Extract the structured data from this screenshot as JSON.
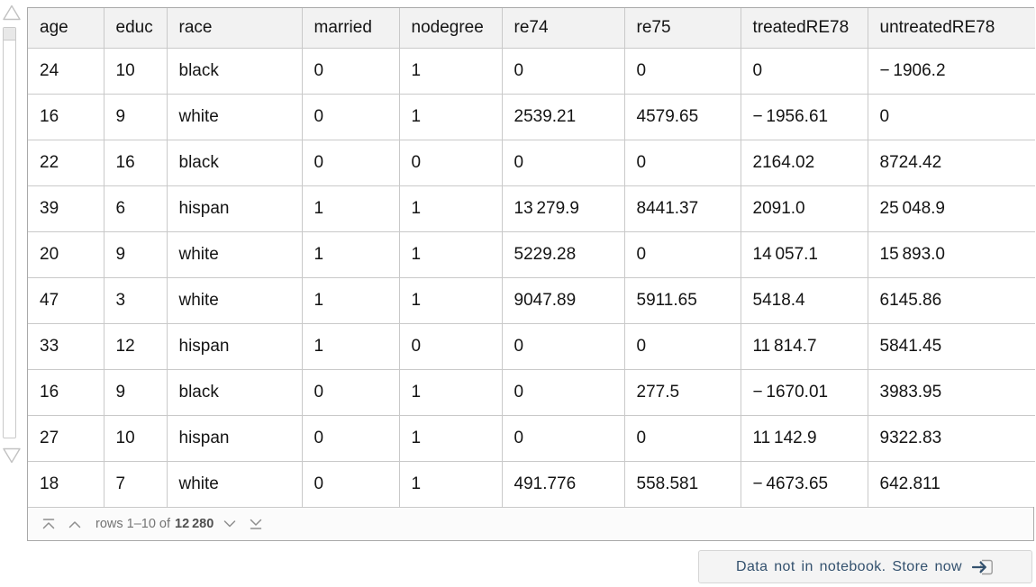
{
  "colors": {
    "accent": "#33516e",
    "header_bg": "#f2f2f2",
    "grid_border": "#c9c9c9"
  },
  "scroller": {
    "up_icon": "triangle-up",
    "down_icon": "triangle-down"
  },
  "table": {
    "columns": [
      "age",
      "educ",
      "race",
      "married",
      "nodegree",
      "re74",
      "re75",
      "treatedRE78",
      "untreatedRE78"
    ],
    "rows": [
      [
        "24",
        "10",
        "black",
        "0",
        "1",
        "0",
        "0",
        "0",
        "− 1906.2"
      ],
      [
        "16",
        "9",
        "white",
        "0",
        "1",
        "2539.21",
        "4579.65",
        "− 1956.61",
        "0"
      ],
      [
        "22",
        "16",
        "black",
        "0",
        "0",
        "0",
        "0",
        "2164.02",
        "8724.42"
      ],
      [
        "39",
        "6",
        "hispan",
        "1",
        "1",
        "13 279.9",
        "8441.37",
        "2091.0",
        "25 048.9"
      ],
      [
        "20",
        "9",
        "white",
        "1",
        "1",
        "5229.28",
        "0",
        "14 057.1",
        "15 893.0"
      ],
      [
        "47",
        "3",
        "white",
        "1",
        "1",
        "9047.89",
        "5911.65",
        "5418.4",
        "6145.86"
      ],
      [
        "33",
        "12",
        "hispan",
        "1",
        "0",
        "0",
        "0",
        "11 814.7",
        "5841.45"
      ],
      [
        "16",
        "9",
        "black",
        "0",
        "1",
        "0",
        "277.5",
        "− 1670.01",
        "3983.95"
      ],
      [
        "27",
        "10",
        "hispan",
        "0",
        "1",
        "0",
        "0",
        "11 142.9",
        "9322.83"
      ],
      [
        "18",
        "7",
        "white",
        "0",
        "1",
        "491.776",
        "558.581",
        "− 4673.65",
        "642.811"
      ]
    ]
  },
  "pagination": {
    "first_icon": "chevron-up-to-top",
    "prev_icon": "chevron-up",
    "range_label": "rows 1–10 of",
    "total_rows": "12 280",
    "next_icon": "chevron-down",
    "last_icon": "chevron-down-to-bottom"
  },
  "store_bar": {
    "label": "Data not in notebook. Store now",
    "icon": "arrow-into-notebook"
  }
}
